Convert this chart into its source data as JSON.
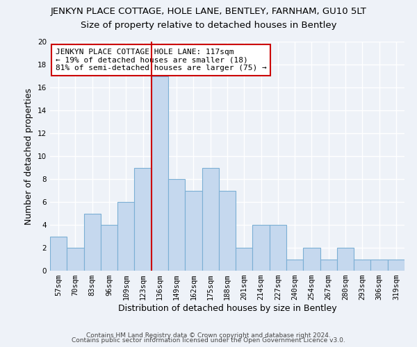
{
  "title": "JENKYN PLACE COTTAGE, HOLE LANE, BENTLEY, FARNHAM, GU10 5LT",
  "subtitle": "Size of property relative to detached houses in Bentley",
  "xlabel": "Distribution of detached houses by size in Bentley",
  "ylabel": "Number of detached properties",
  "bar_labels": [
    "57sqm",
    "70sqm",
    "83sqm",
    "96sqm",
    "109sqm",
    "123sqm",
    "136sqm",
    "149sqm",
    "162sqm",
    "175sqm",
    "188sqm",
    "201sqm",
    "214sqm",
    "227sqm",
    "240sqm",
    "254sqm",
    "267sqm",
    "280sqm",
    "293sqm",
    "306sqm",
    "319sqm"
  ],
  "bar_values": [
    3,
    2,
    5,
    4,
    6,
    9,
    17,
    8,
    7,
    9,
    7,
    2,
    4,
    4,
    1,
    2,
    1,
    2,
    1,
    1,
    1
  ],
  "bar_color": "#c5d8ee",
  "bar_edge_color": "#7bafd4",
  "vline_x_index": 5.5,
  "vline_color": "#cc0000",
  "ylim": [
    0,
    20
  ],
  "yticks": [
    0,
    2,
    4,
    6,
    8,
    10,
    12,
    14,
    16,
    18,
    20
  ],
  "annotation_line1": "JENKYN PLACE COTTAGE HOLE LANE: 117sqm",
  "annotation_line2": "← 19% of detached houses are smaller (18)",
  "annotation_line3": "81% of semi-detached houses are larger (75) →",
  "annotation_box_color": "#ffffff",
  "annotation_box_edge": "#cc0000",
  "footer1": "Contains HM Land Registry data © Crown copyright and database right 2024.",
  "footer2": "Contains public sector information licensed under the Open Government Licence v3.0.",
  "background_color": "#eef2f8",
  "grid_color": "#ffffff",
  "title_fontsize": 9.5,
  "subtitle_fontsize": 9.5,
  "tick_fontsize": 7.5,
  "axis_label_fontsize": 9,
  "annotation_fontsize": 8,
  "footer_fontsize": 6.5
}
